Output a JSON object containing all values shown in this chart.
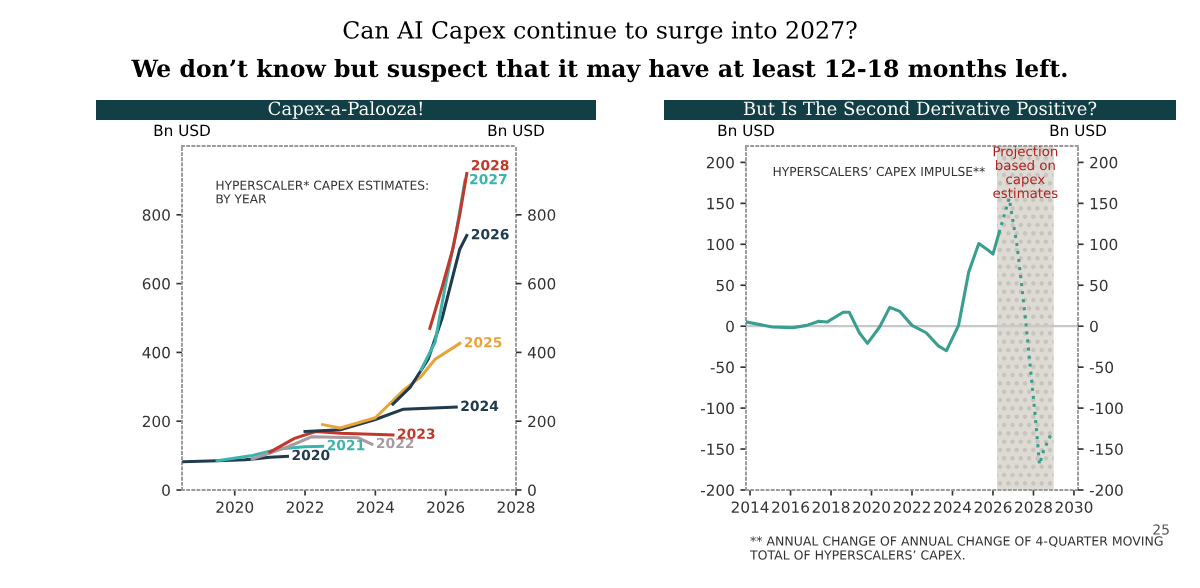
{
  "chart_data": [
    {
      "type": "line",
      "title": "Capex-a-Palooza!",
      "ylabel": "Bn USD",
      "y2label": "Bn USD",
      "xlim": [
        2018.5,
        2028
      ],
      "xticks": [
        2020,
        2022,
        2024,
        2026,
        2028
      ],
      "ylim": [
        0,
        1000
      ],
      "yticks": [
        0,
        200,
        400,
        600,
        800
      ],
      "y2lim": [
        0,
        1000
      ],
      "y2ticks": [
        0,
        200,
        400,
        600,
        800
      ],
      "grid": false,
      "legend": false,
      "marker": "none",
      "annotations": [
        "Can AI Capex continue to surge into 2027?",
        "We don’t know but suspect that it may have at least 12-18 months left.",
        "HYPERSCALER* CAPEX ESTIMATES:\nBY YEAR"
      ],
      "series": [
        {
          "name": "2020",
          "color": "#1f3b4d",
          "x": [
            2018.55,
            2019.5,
            2020.3,
            2021,
            2021.5
          ],
          "values": [
            82,
            85,
            88,
            95,
            98
          ]
        },
        {
          "name": "2021",
          "color": "#3cb4ae",
          "x": [
            2019.5,
            2020.5,
            2021.3,
            2022,
            2022.5
          ],
          "values": [
            85,
            100,
            120,
            126,
            127
          ]
        },
        {
          "name": "2022",
          "color": "#a99aa0",
          "x": [
            2020.5,
            2021.5,
            2022.2,
            2023.5,
            2023.9
          ],
          "values": [
            90,
            125,
            155,
            152,
            133
          ]
        },
        {
          "name": "2023",
          "color": "#c0392b",
          "x": [
            2021,
            2021.7,
            2022.3,
            2023,
            2024.5
          ],
          "values": [
            110,
            150,
            170,
            165,
            160
          ]
        },
        {
          "name": "2024",
          "color": "#1f3b4d",
          "x": [
            2022,
            2023,
            2024,
            2024.8,
            2026.3
          ],
          "values": [
            170,
            175,
            205,
            235,
            241
          ]
        },
        {
          "name": "2025",
          "color": "#e8a33a",
          "x": [
            2022.5,
            2023,
            2024,
            2024.8,
            2025.3,
            2025.7,
            2026.4
          ],
          "values": [
            190,
            180,
            210,
            290,
            330,
            380,
            426
          ]
        },
        {
          "name": "2026",
          "color": "#1f3b4d",
          "x": [
            2024.5,
            2025,
            2025.5,
            2025.9,
            2026.2,
            2026.4,
            2026.6
          ],
          "values": [
            250,
            300,
            380,
            500,
            620,
            700,
            740
          ]
        },
        {
          "name": "2027",
          "color": "#3cb4ae",
          "x": [
            2025.3,
            2025.7,
            2026,
            2026.3,
            2026.55
          ],
          "values": [
            350,
            430,
            600,
            750,
            900
          ]
        },
        {
          "name": "2028",
          "color": "#c0392b",
          "x": [
            2025.55,
            2025.9,
            2026.2,
            2026.4,
            2026.6
          ],
          "values": [
            470,
            590,
            700,
            800,
            920
          ]
        }
      ]
    },
    {
      "type": "line",
      "title": "But Is The Second Derivative Positive?",
      "ylabel": "Bn USD",
      "y2label": "Bn USD",
      "xlim": [
        2013.8,
        2030.2
      ],
      "xticks": [
        2014,
        2016,
        2018,
        2020,
        2022,
        2024,
        2026,
        2028,
        2030
      ],
      "ylim": [
        -200,
        220
      ],
      "yticks": [
        -200,
        -150,
        -100,
        -50,
        0,
        50,
        100,
        150,
        200
      ],
      "y2lim": [
        -200,
        220
      ],
      "y2ticks": [
        -200,
        -150,
        -100,
        -50,
        0,
        50,
        100,
        150,
        200
      ],
      "grid": false,
      "legend": false,
      "marker": "none",
      "ref_lines": [
        {
          "axis": "y",
          "value": 0,
          "color": "#c8c8c8"
        }
      ],
      "bands": [
        {
          "axis": "x",
          "from": 2026.2,
          "to": 2029.0,
          "label": "Projection\nbased on\ncapex\nestimates",
          "color": "#dedad4"
        }
      ],
      "annotations": [
        "HYPERSCALERS’ CAPEX IMPULSE**",
        "** ANNUAL CHANGE OF ANNUAL CHANGE OF 4-QUARTER MOVING\nTOTAL OF HYPERSCALERS’ CAPEX.",
        "25"
      ],
      "series": [
        {
          "color": "#3a9e8f",
          "line_style": "solid",
          "x": [
            2013.85,
            2015.1,
            2016.1,
            2016.8,
            2017.4,
            2017.8,
            2018.6,
            2018.9,
            2019.4,
            2019.8,
            2020.4,
            2020.9,
            2021.4,
            2022.0,
            2022.7,
            2023.3,
            2023.7,
            2024.3,
            2024.8,
            2025.3,
            2025.8,
            2026.0,
            2026.3
          ],
          "values": [
            5,
            -1,
            -2,
            1,
            6,
            5,
            17,
            17,
            -8,
            -21,
            -1,
            23,
            18,
            1,
            -8,
            -24,
            -30,
            1,
            66,
            101,
            92,
            88,
            114
          ]
        },
        {
          "color": "#3a9e8f",
          "line_style": "dotted",
          "x": [
            2026.3,
            2026.8,
            2027.2,
            2027.6,
            2028.1,
            2028.3,
            2028.5,
            2028.9
          ],
          "values": [
            114,
            156,
            97,
            10,
            -113,
            -169,
            -152,
            -130
          ]
        }
      ]
    }
  ]
}
